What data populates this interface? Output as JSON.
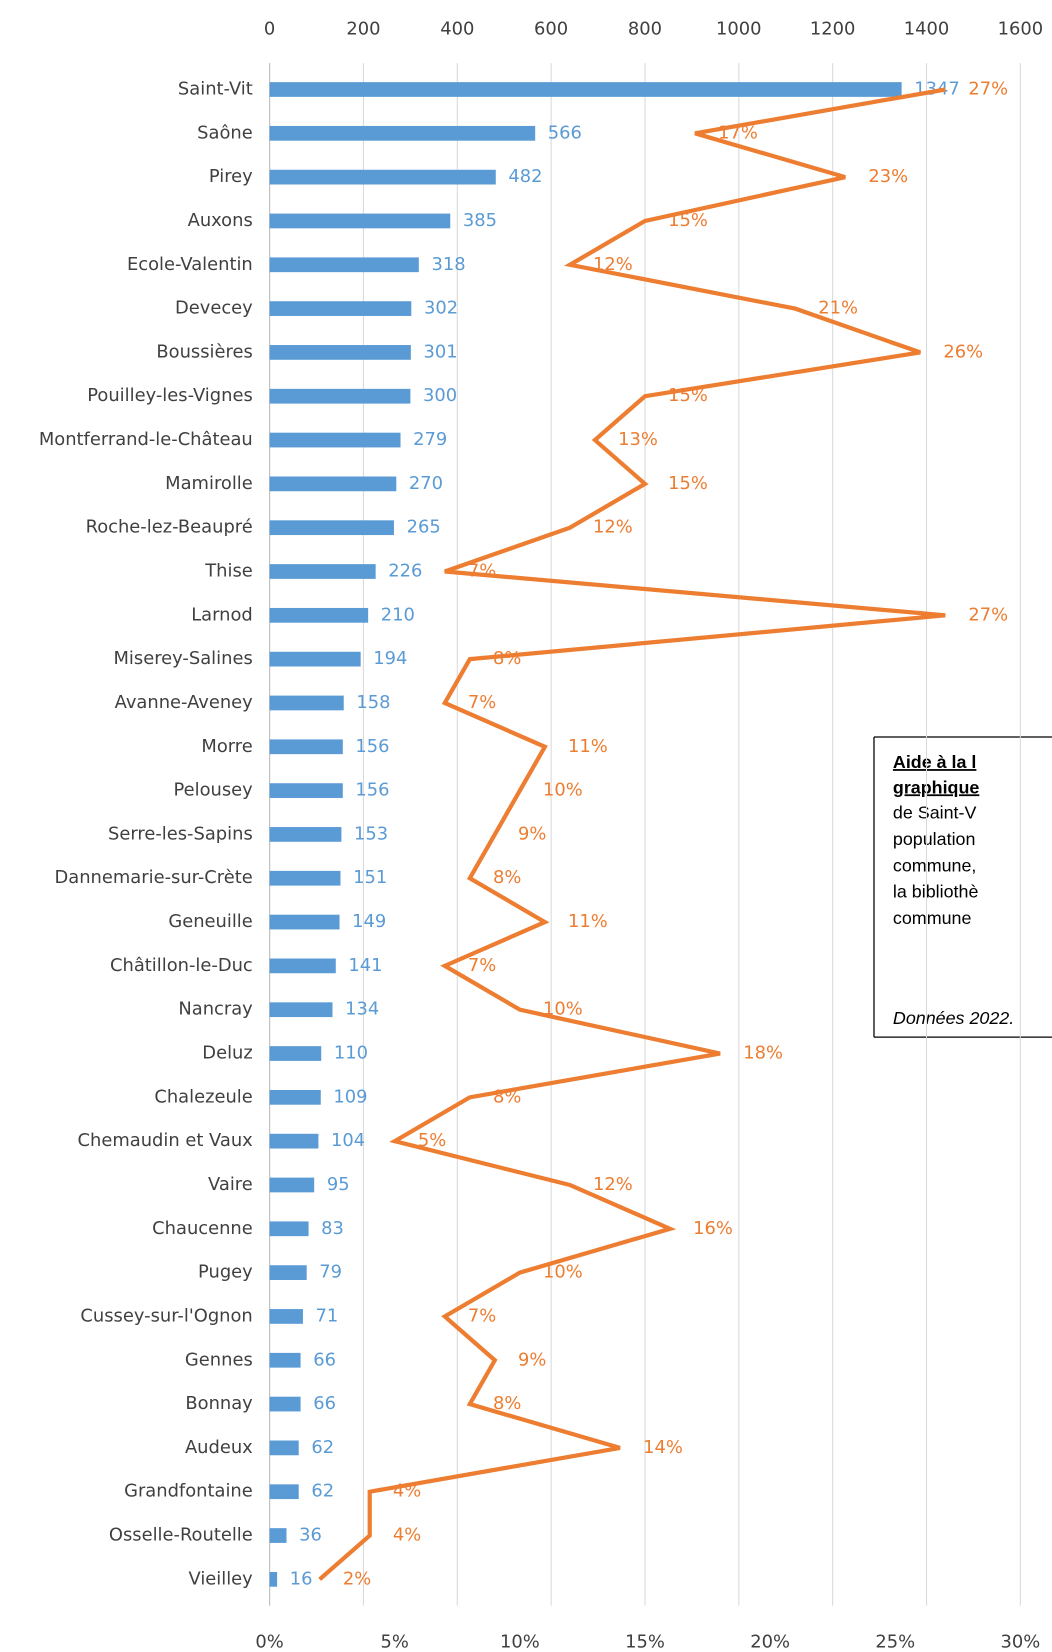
{
  "chart_data": {
    "type": "bar",
    "categories": [
      "Saint-Vit",
      "Saône",
      "Pirey",
      "Auxons",
      "Ecole-Valentin",
      "Devecey",
      "Boussières",
      "Pouilley-les-Vignes",
      "Montferrand-le-Château",
      "Mamirolle",
      "Roche-lez-Beaupré",
      "Thise",
      "Larnod",
      "Miserey-Salines",
      "Avanne-Aveney",
      "Morre",
      "Pelousey",
      "Serre-les-Sapins",
      "Dannemarie-sur-Crète",
      "Geneuille",
      "Châtillon-le-Duc",
      "Nancray",
      "Deluz",
      "Chalezeule",
      "Chemaudin et Vaux",
      "Vaire",
      "Chaucenne",
      "Pugey",
      "Cussey-sur-l'Ognon",
      "Gennes",
      "Bonnay",
      "Audeux",
      "Grandfontaine",
      "Osselle-Routelle",
      "Vieilley"
    ],
    "series": [
      {
        "type": "bar",
        "color": "#5b9bd5",
        "values": [
          1347,
          566,
          482,
          385,
          318,
          302,
          301,
          300,
          279,
          270,
          265,
          226,
          210,
          194,
          158,
          156,
          156,
          153,
          151,
          149,
          141,
          134,
          110,
          109,
          104,
          95,
          83,
          79,
          71,
          66,
          66,
          62,
          62,
          36,
          16
        ]
      },
      {
        "type": "line",
        "axis": "x2",
        "color": "#ed7d31",
        "values": [
          27,
          17,
          23,
          15,
          12,
          21,
          26,
          15,
          13,
          15,
          12,
          7,
          27,
          8,
          7,
          11,
          10,
          9,
          8,
          11,
          7,
          10,
          18,
          8,
          5,
          12,
          16,
          10,
          7,
          9,
          8,
          14,
          4,
          4,
          2
        ],
        "value_labels": [
          "27%",
          "17%",
          "23%",
          "15%",
          "12%",
          "21%",
          "26%",
          "15%",
          "13%",
          "15%",
          "12%",
          "7%",
          "27%",
          "8%",
          "7%",
          "11%",
          "10%",
          "9%",
          "8%",
          "11%",
          "7%",
          "10%",
          "18%",
          "8%",
          "5%",
          "12%",
          "16%",
          "10%",
          "7%",
          "9%",
          "8%",
          "14%",
          "4%",
          "4%",
          "2%"
        ]
      }
    ],
    "xlim": [
      0,
      1600
    ],
    "xticks": [
      0,
      200,
      400,
      600,
      800,
      1000,
      1200,
      1400,
      1600
    ],
    "x2lim": [
      0,
      30
    ],
    "x2ticks": [
      {
        "value": 0,
        "label": "0%"
      },
      {
        "value": 5,
        "label": "5%"
      },
      {
        "value": 10,
        "label": "10%"
      },
      {
        "value": 15,
        "label": "15%"
      },
      {
        "value": 20,
        "label": "20%"
      },
      {
        "value": 25,
        "label": "25%"
      },
      {
        "value": 30,
        "label": "30%"
      }
    ],
    "grid": true,
    "annotation": {
      "heading": [
        "Aide à la l",
        "graphique"
      ],
      "lines": [
        "de Saint-V",
        "population",
        "commune,",
        "la bibliothè",
        "commune"
      ],
      "note": "Données 2022."
    }
  }
}
